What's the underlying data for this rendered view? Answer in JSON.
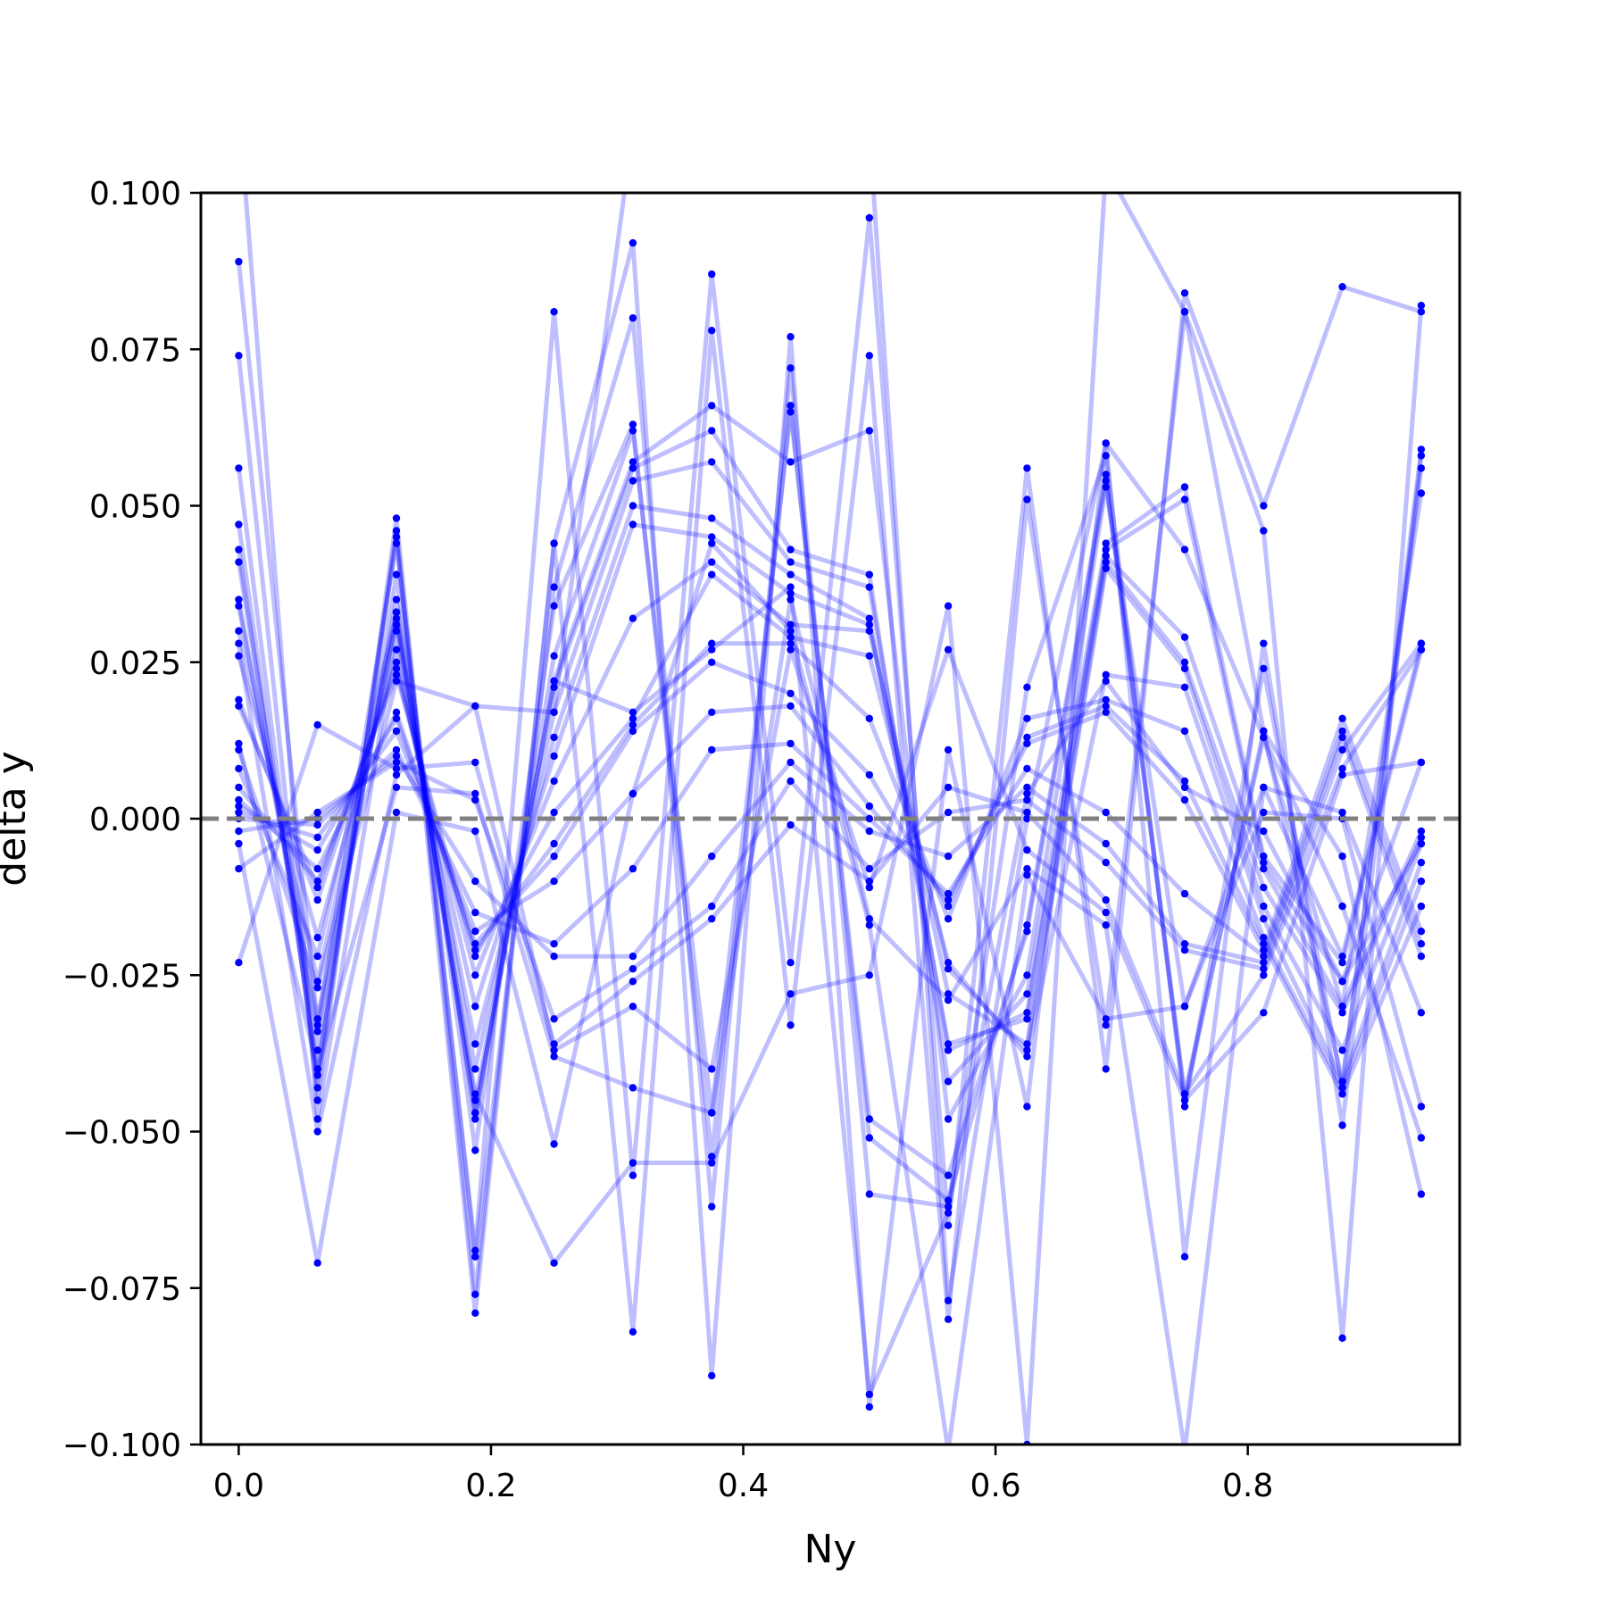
{
  "chart_data": {
    "type": "line",
    "title": "",
    "xlabel": "Ny",
    "ylabel": "delta y",
    "xlim": [
      -0.03,
      0.968
    ],
    "ylim": [
      -0.1,
      0.1
    ],
    "x_ticks": [
      0.0,
      0.2,
      0.4,
      0.6,
      0.8
    ],
    "x_tick_labels": [
      "0.0",
      "0.2",
      "0.4",
      "0.6",
      "0.8"
    ],
    "y_ticks": [
      0.1,
      0.075,
      0.05,
      0.025,
      0.0,
      -0.025,
      -0.05,
      -0.075,
      -0.1
    ],
    "y_tick_labels": [
      "0.100",
      "0.075",
      "0.050",
      "0.025",
      "0.000",
      "−0.025",
      "−0.050",
      "−0.075",
      "−0.100"
    ],
    "reference_line": {
      "y": 0.0,
      "style": "dashed",
      "color": "#808080"
    },
    "grid": false,
    "legend": "none",
    "line_color": "#0000ff",
    "line_opacity": 0.25,
    "marker_color": "#0000ff",
    "x": [
      0.0,
      0.0625,
      0.125,
      0.1875,
      0.25,
      0.3125,
      0.375,
      0.4375,
      0.5,
      0.5625,
      0.625,
      0.6875,
      0.75,
      0.8125,
      0.875,
      0.9375
    ],
    "series": [
      {
        "values": [
          0.089,
          -0.033,
          0.044,
          -0.069,
          0.081,
          -0.057,
          0.087,
          -0.023,
          0.096,
          -0.065,
          0.056,
          -0.04,
          0.084,
          0.05,
          0.085,
          0.081
        ]
      },
      {
        "values": [
          0.074,
          -0.045,
          0.048,
          -0.076,
          0.044,
          -0.082,
          0.078,
          -0.033,
          0.074,
          -0.08,
          0.051,
          -0.033,
          0.081,
          0.046,
          -0.083,
          0.082
        ]
      },
      {
        "values": [
          0.056,
          -0.043,
          0.046,
          -0.079,
          0.044,
          0.092,
          -0.089,
          0.077,
          -0.094,
          0.011,
          -0.046,
          0.06,
          -0.07,
          0.028,
          -0.049,
          0.058
        ]
      },
      {
        "values": [
          0.047,
          -0.041,
          0.045,
          -0.07,
          0.037,
          0.08,
          -0.062,
          0.072,
          -0.06,
          -0.062,
          0.021,
          0.058,
          -0.046,
          0.024,
          -0.043,
          0.059
        ]
      },
      {
        "values": [
          0.043,
          -0.04,
          0.039,
          -0.053,
          0.034,
          0.063,
          -0.054,
          0.066,
          -0.051,
          -0.061,
          -0.017,
          0.055,
          -0.045,
          0.014,
          -0.042,
          0.056
        ]
      },
      {
        "values": [
          0.041,
          -0.037,
          0.035,
          -0.048,
          0.026,
          0.062,
          -0.047,
          0.065,
          -0.048,
          -0.057,
          -0.018,
          0.054,
          -0.044,
          0.013,
          -0.03,
          0.052
        ]
      },
      {
        "values": [
          0.035,
          -0.034,
          0.033,
          -0.047,
          0.022,
          0.057,
          0.066,
          0.057,
          0.062,
          -0.048,
          -0.025,
          0.053,
          -0.03,
          0.005,
          -0.022,
          0.028
        ]
      },
      {
        "values": [
          0.034,
          -0.032,
          0.032,
          -0.045,
          0.021,
          0.056,
          0.062,
          0.043,
          0.039,
          -0.042,
          -0.028,
          0.044,
          0.053,
          -0.006,
          -0.023,
          0.027
        ]
      },
      {
        "values": [
          0.03,
          -0.026,
          0.031,
          -0.04,
          0.017,
          0.054,
          0.057,
          0.041,
          0.037,
          -0.037,
          -0.031,
          0.043,
          0.051,
          -0.007,
          -0.026,
          0.009
        ]
      },
      {
        "values": [
          0.026,
          -0.019,
          0.027,
          -0.036,
          0.013,
          0.05,
          0.048,
          0.039,
          0.032,
          -0.036,
          -0.032,
          0.042,
          0.029,
          -0.008,
          -0.03,
          -0.002
        ]
      },
      {
        "values": [
          0.019,
          -0.013,
          0.025,
          -0.03,
          0.01,
          0.047,
          0.045,
          0.036,
          0.031,
          -0.028,
          -0.036,
          0.041,
          0.025,
          -0.011,
          -0.031,
          -0.003
        ]
      },
      {
        "values": [
          0.018,
          -0.011,
          0.024,
          -0.025,
          0.006,
          0.032,
          0.041,
          0.031,
          0.03,
          -0.024,
          -0.037,
          0.04,
          0.024,
          -0.014,
          -0.037,
          -0.004
        ]
      },
      {
        "values": [
          0.005,
          -0.01,
          0.023,
          -0.022,
          0.001,
          0.016,
          0.039,
          0.029,
          0.026,
          -0.023,
          -0.038,
          0.023,
          0.021,
          -0.016,
          -0.042,
          -0.007
        ]
      },
      {
        "values": [
          0.003,
          -0.008,
          0.017,
          -0.021,
          -0.004,
          0.015,
          0.028,
          0.028,
          0.016,
          -0.016,
          0.016,
          0.019,
          0.014,
          -0.019,
          -0.043,
          -0.01
        ]
      },
      {
        "values": [
          0.002,
          -0.005,
          0.016,
          -0.02,
          -0.006,
          0.014,
          0.025,
          0.02,
          0.007,
          -0.014,
          0.013,
          0.018,
          0.006,
          -0.02,
          -0.044,
          -0.014
        ]
      },
      {
        "values": [
          0.001,
          -0.003,
          0.014,
          -0.018,
          -0.01,
          0.004,
          0.017,
          0.018,
          0.002,
          -0.013,
          0.012,
          0.017,
          0.003,
          -0.021,
          0.016,
          -0.018
        ]
      },
      {
        "values": [
          0.0,
          -0.001,
          0.011,
          -0.015,
          -0.02,
          -0.008,
          0.011,
          0.012,
          0.0,
          -0.012,
          0.008,
          0.001,
          -0.012,
          -0.022,
          0.014,
          -0.02
        ]
      },
      {
        "values": [
          -0.002,
          0.0,
          0.01,
          -0.01,
          -0.022,
          -0.022,
          -0.006,
          0.009,
          -0.002,
          -0.006,
          0.005,
          -0.004,
          -0.02,
          -0.023,
          0.013,
          -0.022
        ]
      },
      {
        "values": [
          -0.008,
          0.001,
          0.009,
          0.003,
          -0.032,
          -0.024,
          -0.014,
          0.006,
          -0.008,
          0.001,
          0.003,
          -0.007,
          -0.021,
          -0.024,
          0.011,
          0.028
        ]
      },
      {
        "values": [
          -0.023,
          0.015,
          0.008,
          0.009,
          -0.036,
          -0.026,
          -0.016,
          -0.001,
          -0.01,
          0.005,
          0.001,
          -0.013,
          -0.044,
          -0.025,
          0.008,
          0.027
        ]
      },
      {
        "values": [
          0.028,
          -0.05,
          0.007,
          0.018,
          -0.037,
          -0.03,
          -0.04,
          0.027,
          -0.011,
          0.027,
          -0.005,
          -0.015,
          -0.045,
          -0.031,
          0.007,
          0.009
        ]
      },
      {
        "values": [
          0.012,
          -0.04,
          0.005,
          0.004,
          -0.038,
          -0.043,
          -0.047,
          0.035,
          -0.016,
          -0.029,
          -0.008,
          -0.017,
          -0.101,
          0.005,
          0.001,
          -0.031
        ]
      },
      {
        "values": [
          -0.004,
          -0.071,
          0.001,
          -0.002,
          -0.052,
          0.004,
          0.044,
          0.03,
          -0.017,
          -0.101,
          -0.009,
          -0.032,
          -0.03,
          0.001,
          0.0,
          -0.046
        ]
      },
      {
        "values": [
          0.114,
          -0.048,
          0.03,
          -0.044,
          -0.071,
          -0.055,
          -0.055,
          -0.028,
          -0.025,
          0.034,
          -0.1,
          0.104,
          0.081,
          0.014,
          -0.006,
          -0.06
        ]
      },
      {
        "values": [
          0.011,
          -0.027,
          0.022,
          0.018,
          0.017,
          0.11,
          0.113,
          0.106,
          0.11,
          -0.077,
          0.0,
          0.06,
          0.043,
          0.013,
          -0.014,
          -0.051
        ]
      },
      {
        "values": [
          0.008,
          -0.022,
          0.033,
          -0.047,
          0.022,
          0.017,
          0.027,
          0.037,
          -0.092,
          -0.063,
          0.004,
          0.022,
          0.005,
          -0.002,
          -0.026,
          -0.004
        ]
      }
    ]
  }
}
